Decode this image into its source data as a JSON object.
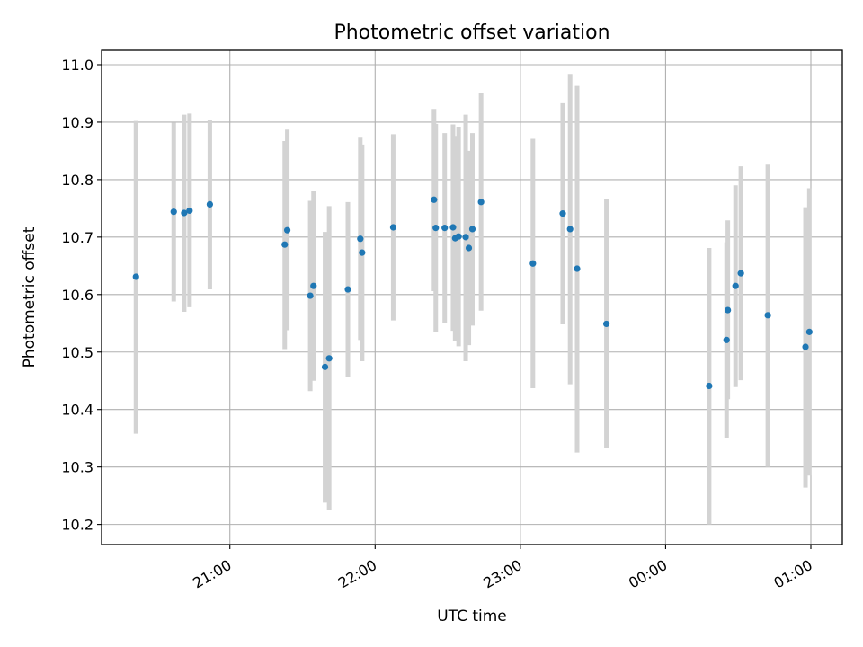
{
  "chart_data": {
    "type": "scatter",
    "title": "Photometric offset variation",
    "xlabel": "UTC time",
    "ylabel": "Photometric offset",
    "x_axis_type": "time",
    "xlim": [
      "2023-01-01T20:07:00",
      "2023-01-02T01:13:00"
    ],
    "ylim": [
      10.165,
      11.025
    ],
    "x_ticks": [
      {
        "t": "2023-01-01T21:00:00",
        "label": "21:00"
      },
      {
        "t": "2023-01-01T22:00:00",
        "label": "22:00"
      },
      {
        "t": "2023-01-01T23:00:00",
        "label": "23:00"
      },
      {
        "t": "2023-01-02T00:00:00",
        "label": "00:00"
      },
      {
        "t": "2023-01-02T01:00:00",
        "label": "01:00"
      }
    ],
    "y_ticks": [
      {
        "v": 10.2,
        "label": "10.2"
      },
      {
        "v": 10.3,
        "label": "10.3"
      },
      {
        "v": 10.4,
        "label": "10.4"
      },
      {
        "v": 10.5,
        "label": "10.5"
      },
      {
        "v": 10.6,
        "label": "10.6"
      },
      {
        "v": 10.7,
        "label": "10.7"
      },
      {
        "v": 10.8,
        "label": "10.8"
      },
      {
        "v": 10.9,
        "label": "10.9"
      },
      {
        "v": 11.0,
        "label": "11.0"
      }
    ],
    "grid": true,
    "colors": {
      "point": "#1f77b4",
      "errorbar": "#d3d3d3"
    },
    "points": [
      {
        "t": "2023-01-01T20:21:12",
        "y": 10.631,
        "lo": 10.358,
        "hi": 10.902
      },
      {
        "t": "2023-01-01T20:36:48",
        "y": 10.744,
        "lo": 10.588,
        "hi": 10.899
      },
      {
        "t": "2023-01-01T20:41:07",
        "y": 10.742,
        "lo": 10.57,
        "hi": 10.913
      },
      {
        "t": "2023-01-01T20:43:20",
        "y": 10.746,
        "lo": 10.578,
        "hi": 10.915
      },
      {
        "t": "2023-01-01T20:51:43",
        "y": 10.757,
        "lo": 10.609,
        "hi": 10.904
      },
      {
        "t": "2023-01-01T21:22:40",
        "y": 10.687,
        "lo": 10.505,
        "hi": 10.867
      },
      {
        "t": "2023-01-01T21:23:43",
        "y": 10.712,
        "lo": 10.538,
        "hi": 10.887
      },
      {
        "t": "2023-01-01T21:33:12",
        "y": 10.598,
        "lo": 10.432,
        "hi": 10.763
      },
      {
        "t": "2023-01-01T21:34:33",
        "y": 10.615,
        "lo": 10.45,
        "hi": 10.781
      },
      {
        "t": "2023-01-01T21:39:18",
        "y": 10.474,
        "lo": 10.238,
        "hi": 10.709
      },
      {
        "t": "2023-01-01T21:41:01",
        "y": 10.489,
        "lo": 10.225,
        "hi": 10.754
      },
      {
        "t": "2023-01-01T21:48:45",
        "y": 10.609,
        "lo": 10.457,
        "hi": 10.761
      },
      {
        "t": "2023-01-01T21:53:53",
        "y": 10.697,
        "lo": 10.521,
        "hi": 10.873
      },
      {
        "t": "2023-01-01T21:54:38",
        "y": 10.673,
        "lo": 10.484,
        "hi": 10.861
      },
      {
        "t": "2023-01-01T22:07:29",
        "y": 10.717,
        "lo": 10.555,
        "hi": 10.879
      },
      {
        "t": "2023-01-01T22:24:20",
        "y": 10.765,
        "lo": 10.606,
        "hi": 10.923
      },
      {
        "t": "2023-01-01T22:25:03",
        "y": 10.716,
        "lo": 10.534,
        "hi": 10.897
      },
      {
        "t": "2023-01-01T22:28:45",
        "y": 10.716,
        "lo": 10.551,
        "hi": 10.881
      },
      {
        "t": "2023-01-01T22:32:11",
        "y": 10.717,
        "lo": 10.537,
        "hi": 10.896
      },
      {
        "t": "2023-01-01T22:33:04",
        "y": 10.698,
        "lo": 10.52,
        "hi": 10.876
      },
      {
        "t": "2023-01-01T22:34:29",
        "y": 10.701,
        "lo": 10.51,
        "hi": 10.892
      },
      {
        "t": "2023-01-01T22:37:25",
        "y": 10.7,
        "lo": 10.484,
        "hi": 10.913
      },
      {
        "t": "2023-01-01T22:38:43",
        "y": 10.681,
        "lo": 10.512,
        "hi": 10.85
      },
      {
        "t": "2023-01-01T22:40:11",
        "y": 10.714,
        "lo": 10.546,
        "hi": 10.881
      },
      {
        "t": "2023-01-01T22:43:46",
        "y": 10.761,
        "lo": 10.572,
        "hi": 10.95
      },
      {
        "t": "2023-01-01T23:05:11",
        "y": 10.654,
        "lo": 10.437,
        "hi": 10.871
      },
      {
        "t": "2023-01-01T23:17:30",
        "y": 10.741,
        "lo": 10.548,
        "hi": 10.933
      },
      {
        "t": "2023-01-01T23:20:33",
        "y": 10.714,
        "lo": 10.444,
        "hi": 10.984
      },
      {
        "t": "2023-01-01T23:23:27",
        "y": 10.645,
        "lo": 10.325,
        "hi": 10.963
      },
      {
        "t": "2023-01-01T23:35:33",
        "y": 10.549,
        "lo": 10.333,
        "hi": 10.767
      },
      {
        "t": "2023-01-02T00:18:00",
        "y": 10.441,
        "lo": 10.2,
        "hi": 10.681
      },
      {
        "t": "2023-01-02T00:25:11",
        "y": 10.521,
        "lo": 10.351,
        "hi": 10.691
      },
      {
        "t": "2023-01-02T00:25:42",
        "y": 10.573,
        "lo": 10.418,
        "hi": 10.729
      },
      {
        "t": "2023-01-02T00:28:53",
        "y": 10.615,
        "lo": 10.439,
        "hi": 10.79
      },
      {
        "t": "2023-01-02T00:31:05",
        "y": 10.637,
        "lo": 10.451,
        "hi": 10.823
      },
      {
        "t": "2023-01-02T00:42:13",
        "y": 10.564,
        "lo": 10.3,
        "hi": 10.826
      },
      {
        "t": "2023-01-02T00:57:47",
        "y": 10.509,
        "lo": 10.264,
        "hi": 10.752
      },
      {
        "t": "2023-01-02T00:59:23",
        "y": 10.535,
        "lo": 10.285,
        "hi": 10.785
      }
    ]
  }
}
